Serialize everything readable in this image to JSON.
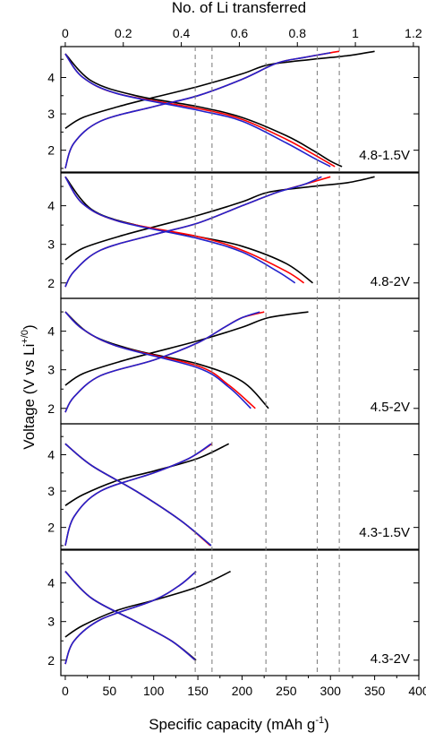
{
  "figure": {
    "top_axis_title": "No. of Li transferred",
    "x_axis_title": "Specific capacity (mAh g",
    "x_axis_title_sup": "-1",
    "x_axis_title_end": ")",
    "y_axis_title": "Voltage (V vs Li",
    "y_axis_title_sup": "+/0",
    "y_axis_title_end": ")"
  },
  "chart_data": {
    "type": "line",
    "xlabel": "Specific capacity (mAh g-1)",
    "ylabel": "Voltage (V vs Li+/0)",
    "top_xlabel": "No. of Li transferred",
    "xlim": [
      -5,
      400
    ],
    "x_ticks": [
      0,
      50,
      100,
      150,
      200,
      250,
      300,
      350,
      400
    ],
    "top_ticks": [
      0,
      0.2,
      0.4,
      0.6,
      0.8,
      1,
      1.2
    ],
    "top_tick_labels": [
      "0",
      "0.2",
      "0.4",
      "0.6",
      "0.8",
      "1",
      "1.2"
    ],
    "li_per_mAh_g": 0.003047,
    "reference_lines_x": [
      147,
      166,
      227,
      285,
      310
    ],
    "series_colors": {
      "black": "#000000",
      "red": "#ff0000",
      "blue": "#2222cc"
    },
    "panels": [
      {
        "label": "4.8-1.5V",
        "ylim": [
          1.4,
          4.85
        ],
        "yticks": [
          2,
          3,
          4
        ],
        "series": [
          {
            "color": "black",
            "charge": {
              "x": [
                0,
                20,
                60,
                100,
                150,
                200,
                230,
                280,
                320,
                350
              ],
              "y": [
                2.6,
                2.9,
                3.2,
                3.45,
                3.75,
                4.1,
                4.35,
                4.5,
                4.6,
                4.72
              ]
            },
            "discharge": {
              "x": [
                0,
                30,
                80,
                150,
                200,
                250,
                280,
                300,
                313
              ],
              "y": [
                4.65,
                3.9,
                3.5,
                3.2,
                2.9,
                2.4,
                2.0,
                1.7,
                1.55
              ]
            }
          },
          {
            "color": "red",
            "charge": {
              "x": [
                0,
                10,
                40,
                100,
                150,
                200,
                240,
                270,
                300,
                310
              ],
              "y": [
                1.5,
                2.2,
                2.8,
                3.2,
                3.5,
                3.95,
                4.4,
                4.55,
                4.68,
                4.72
              ]
            },
            "discharge": {
              "x": [
                0,
                20,
                60,
                150,
                200,
                250,
                280,
                305
              ],
              "y": [
                4.65,
                4.0,
                3.55,
                3.15,
                2.85,
                2.3,
                1.9,
                1.55
              ]
            }
          },
          {
            "color": "blue",
            "charge": {
              "x": [
                0,
                10,
                40,
                100,
                150,
                200,
                240,
                270,
                300
              ],
              "y": [
                1.5,
                2.2,
                2.8,
                3.2,
                3.5,
                3.95,
                4.4,
                4.55,
                4.68
              ]
            },
            "discharge": {
              "x": [
                0,
                20,
                60,
                150,
                200,
                250,
                280,
                300
              ],
              "y": [
                4.65,
                4.0,
                3.55,
                3.1,
                2.8,
                2.2,
                1.8,
                1.55
              ]
            }
          }
        ]
      },
      {
        "label": "4.8-2V",
        "ylim": [
          1.6,
          4.85
        ],
        "yticks": [
          2,
          3,
          4
        ],
        "series": [
          {
            "color": "black",
            "charge": {
              "x": [
                0,
                20,
                60,
                100,
                150,
                200,
                230,
                280,
                320,
                350
              ],
              "y": [
                2.6,
                2.9,
                3.2,
                3.45,
                3.75,
                4.1,
                4.35,
                4.5,
                4.6,
                4.75
              ]
            },
            "discharge": {
              "x": [
                0,
                30,
                80,
                150,
                200,
                250,
                280
              ],
              "y": [
                4.75,
                3.9,
                3.5,
                3.2,
                2.95,
                2.5,
                2.0
              ]
            }
          },
          {
            "color": "red",
            "charge": {
              "x": [
                0,
                10,
                40,
                100,
                150,
                200,
                240,
                270,
                300
              ],
              "y": [
                1.9,
                2.3,
                2.85,
                3.25,
                3.55,
                4.0,
                4.35,
                4.55,
                4.75
              ]
            },
            "discharge": {
              "x": [
                0,
                20,
                60,
                150,
                200,
                250,
                270
              ],
              "y": [
                4.75,
                4.05,
                3.6,
                3.2,
                2.85,
                2.3,
                2.0
              ]
            }
          },
          {
            "color": "blue",
            "charge": {
              "x": [
                0,
                10,
                40,
                100,
                150,
                200,
                240,
                270,
                290
              ],
              "y": [
                1.9,
                2.3,
                2.85,
                3.25,
                3.55,
                4.0,
                4.35,
                4.55,
                4.75
              ]
            },
            "discharge": {
              "x": [
                0,
                20,
                60,
                150,
                200,
                240,
                260
              ],
              "y": [
                4.75,
                4.05,
                3.6,
                3.15,
                2.8,
                2.3,
                2.0
              ]
            }
          }
        ]
      },
      {
        "label": "4.5-2V",
        "ylim": [
          1.6,
          4.85
        ],
        "yticks": [
          2,
          3,
          4
        ],
        "series": [
          {
            "color": "black",
            "charge": {
              "x": [
                0,
                20,
                60,
                100,
                150,
                200,
                230,
                275
              ],
              "y": [
                2.6,
                2.9,
                3.2,
                3.45,
                3.75,
                4.1,
                4.35,
                4.5
              ]
            },
            "discharge": {
              "x": [
                0,
                30,
                80,
                150,
                200,
                230
              ],
              "y": [
                4.5,
                3.9,
                3.5,
                3.15,
                2.7,
                2.0
              ]
            }
          },
          {
            "color": "red",
            "charge": {
              "x": [
                0,
                10,
                40,
                100,
                150,
                180,
                200,
                225
              ],
              "y": [
                1.9,
                2.3,
                2.85,
                3.25,
                3.7,
                4.1,
                4.35,
                4.5
              ]
            },
            "discharge": {
              "x": [
                0,
                20,
                60,
                150,
                185,
                215
              ],
              "y": [
                4.5,
                4.05,
                3.6,
                3.1,
                2.6,
                2.0
              ]
            }
          },
          {
            "color": "blue",
            "charge": {
              "x": [
                0,
                10,
                40,
                100,
                150,
                180,
                200,
                220
              ],
              "y": [
                1.9,
                2.3,
                2.85,
                3.25,
                3.7,
                4.1,
                4.35,
                4.5
              ]
            },
            "discharge": {
              "x": [
                0,
                20,
                60,
                150,
                185,
                210
              ],
              "y": [
                4.5,
                4.05,
                3.6,
                3.05,
                2.55,
                2.0
              ]
            }
          }
        ]
      },
      {
        "label": "4.3-1.5V",
        "ylim": [
          1.4,
          4.85
        ],
        "yticks": [
          2,
          3,
          4
        ],
        "series": [
          {
            "color": "black",
            "charge": {
              "x": [
                0,
                20,
                60,
                100,
                150,
                185
              ],
              "y": [
                2.6,
                2.9,
                3.3,
                3.55,
                3.9,
                4.3
              ]
            },
            "discharge": {
              "x": [
                0,
                30,
                80,
                130,
                165
              ],
              "y": [
                4.3,
                3.7,
                3.0,
                2.2,
                1.5
              ]
            }
          },
          {
            "color": "red",
            "charge": {
              "x": [
                0,
                10,
                40,
                100,
                140,
                166
              ],
              "y": [
                1.5,
                2.3,
                3.0,
                3.5,
                3.9,
                4.3
              ]
            },
            "discharge": {
              "x": [
                0,
                30,
                80,
                130,
                164
              ],
              "y": [
                4.3,
                3.7,
                3.0,
                2.2,
                1.5
              ]
            }
          },
          {
            "color": "blue",
            "charge": {
              "x": [
                0,
                10,
                40,
                100,
                140,
                165
              ],
              "y": [
                1.5,
                2.3,
                3.0,
                3.5,
                3.9,
                4.3
              ]
            },
            "discharge": {
              "x": [
                0,
                30,
                80,
                130,
                165
              ],
              "y": [
                4.3,
                3.7,
                3.0,
                2.2,
                1.5
              ]
            }
          }
        ]
      },
      {
        "label": "4.3-2V",
        "ylim": [
          1.6,
          4.85
        ],
        "yticks": [
          2,
          3,
          4
        ],
        "series": [
          {
            "color": "black",
            "charge": {
              "x": [
                0,
                20,
                60,
                100,
                150,
                187
              ],
              "y": [
                2.6,
                2.9,
                3.3,
                3.55,
                3.9,
                4.3
              ]
            },
            "discharge": {
              "x": [
                0,
                30,
                80,
                120,
                148
              ],
              "y": [
                4.3,
                3.6,
                3.0,
                2.5,
                2.0
              ]
            }
          },
          {
            "color": "red",
            "charge": {
              "x": [
                0,
                10,
                40,
                100,
                130,
                148
              ],
              "y": [
                1.9,
                2.5,
                3.05,
                3.55,
                3.95,
                4.3
              ]
            },
            "discharge": {
              "x": [
                0,
                30,
                80,
                120,
                147
              ],
              "y": [
                4.3,
                3.6,
                3.0,
                2.5,
                2.0
              ]
            }
          },
          {
            "color": "blue",
            "charge": {
              "x": [
                0,
                10,
                40,
                100,
                130,
                148
              ],
              "y": [
                1.9,
                2.5,
                3.05,
                3.55,
                3.95,
                4.3
              ]
            },
            "discharge": {
              "x": [
                0,
                30,
                80,
                120,
                147
              ],
              "y": [
                4.3,
                3.6,
                3.0,
                2.5,
                2.0
              ]
            }
          }
        ]
      }
    ]
  }
}
